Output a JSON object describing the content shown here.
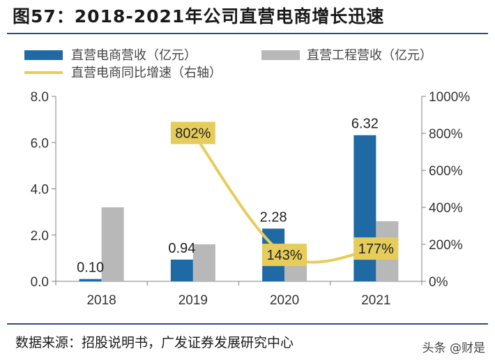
{
  "title": "图57：2018-2021年公司直营电商增长迅速",
  "source": "数据来源：招股说明书，广发证券发展研究中心",
  "watermark": "头条 @财是",
  "colors": {
    "ecommerce_revenue": "#1f6aa5",
    "engineering_revenue": "#b8b8b8",
    "growth_line": "#e6cd5b",
    "label_box": "#e6cd5b"
  },
  "chart_data": {
    "type": "bar",
    "categories": [
      "2018",
      "2019",
      "2020",
      "2021"
    ],
    "series": [
      {
        "name": "直营电商营收（亿元）",
        "type": "bar",
        "axis": "left",
        "values": [
          0.1,
          0.94,
          2.28,
          6.32
        ],
        "labels": [
          "0.10",
          "0.94",
          "2.28",
          "6.32"
        ]
      },
      {
        "name": "直营工程营收（亿元）",
        "type": "bar",
        "axis": "left",
        "values": [
          3.2,
          1.6,
          0.9,
          2.6
        ]
      },
      {
        "name": "直营电商同比增速（右轴）",
        "type": "line",
        "axis": "right",
        "values": [
          null,
          802,
          143,
          177
        ],
        "labels": [
          "",
          "802%",
          "143%",
          "177%"
        ]
      }
    ],
    "y_left": {
      "min": 0,
      "max": 8,
      "ticks": [
        "0.0",
        "2.0",
        "4.0",
        "6.0",
        "8.0"
      ]
    },
    "y_right": {
      "min": 0,
      "max": 1000,
      "ticks": [
        "0%",
        "200%",
        "400%",
        "600%",
        "800%",
        "1000%"
      ]
    },
    "legend_position": "top",
    "grid": false
  }
}
